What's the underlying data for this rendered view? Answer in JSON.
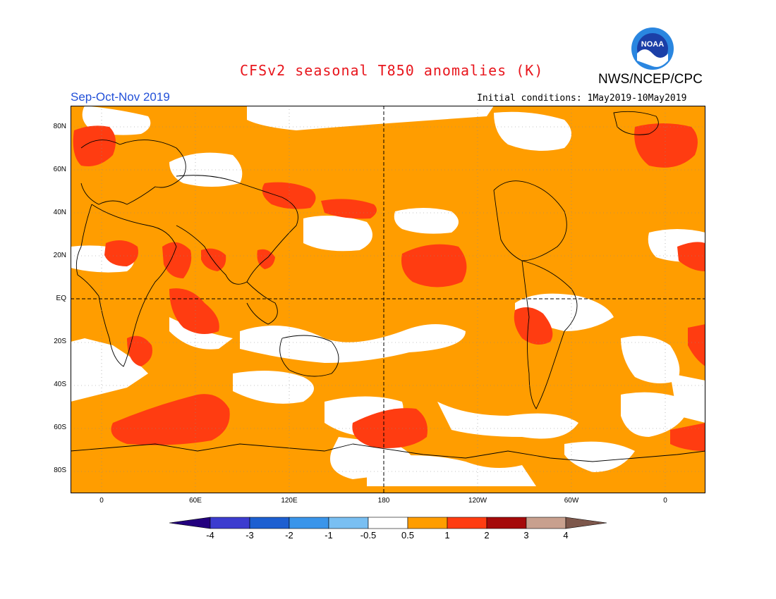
{
  "header": {
    "title": "CFSv2 seasonal T850 anomalies (K)",
    "agency": "NWS/NCEP/CPC",
    "season": "Sep-Oct-Nov 2019",
    "initial_conditions": "Initial conditions: 1May2019-10May2019",
    "logo_text": "NOAA"
  },
  "map": {
    "lat_labels": [
      "80N",
      "60N",
      "40N",
      "20N",
      "EQ",
      "20S",
      "40S",
      "60S",
      "80S"
    ],
    "lon_labels": [
      "0",
      "60E",
      "120E",
      "180",
      "120W",
      "60W",
      "0"
    ]
  },
  "legend": {
    "labels": [
      "-4",
      "-3",
      "-2",
      "-1",
      "-0.5",
      "0.5",
      "1",
      "2",
      "3",
      "4"
    ],
    "colors": {
      "lt_neg4": "#23007e",
      "neg4_neg3": "#3c3ccf",
      "neg3_neg2": "#1d5fd1",
      "neg2_neg1": "#3a95ea",
      "neg1_neg05": "#79bff2",
      "neutral": "#ffffff",
      "p05_1": "#ff9d00",
      "p1_2": "#ff3c11",
      "p2_3": "#a50a0a",
      "p3_4": "#c8a08e",
      "gt4": "#7d574b"
    }
  }
}
